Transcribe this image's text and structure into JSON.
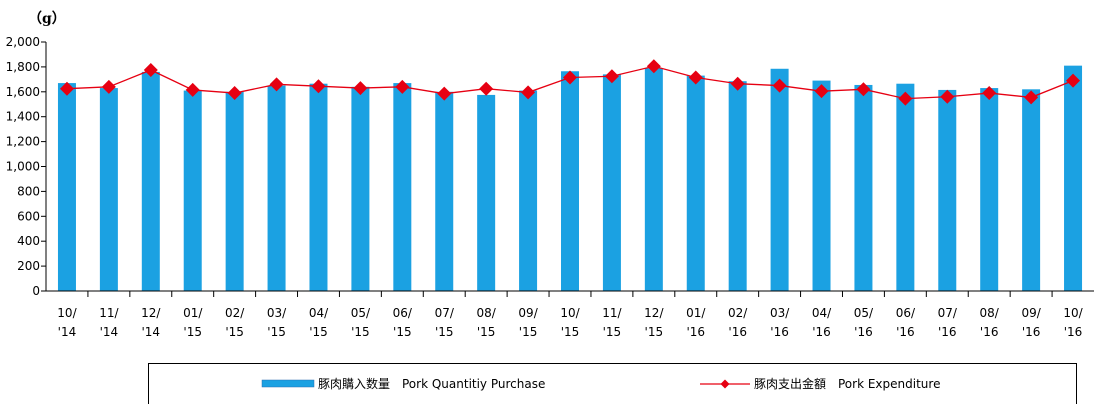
{
  "chart_data": {
    "type": "bar",
    "unit_label": "（g）",
    "y_ticks": [
      "0",
      "200",
      "400",
      "600",
      "800",
      "1,000",
      "1,200",
      "1,400",
      "1,600",
      "1,800",
      "2,000"
    ],
    "ylim": [
      0,
      2000
    ],
    "categories": [
      [
        "10/",
        "'14"
      ],
      [
        "11/",
        "'14"
      ],
      [
        "12/",
        "'14"
      ],
      [
        "01/",
        "'15"
      ],
      [
        "02/",
        "'15"
      ],
      [
        "03/",
        "'15"
      ],
      [
        "04/",
        "'15"
      ],
      [
        "05/",
        "'15"
      ],
      [
        "06/",
        "'15"
      ],
      [
        "07/",
        "'15"
      ],
      [
        "08/",
        "'15"
      ],
      [
        "09/",
        "'15"
      ],
      [
        "10/",
        "'15"
      ],
      [
        "11/",
        "'15"
      ],
      [
        "12/",
        "'15"
      ],
      [
        "01/",
        "'16"
      ],
      [
        "02/",
        "'16"
      ],
      [
        "03/",
        "'16"
      ],
      [
        "04/",
        "'16"
      ],
      [
        "05/",
        "'16"
      ],
      [
        "06/",
        "'16"
      ],
      [
        "07/",
        "'16"
      ],
      [
        "08/",
        "'16"
      ],
      [
        "09/",
        "'16"
      ],
      [
        "10/",
        "'16"
      ]
    ],
    "series": [
      {
        "name": "豚肉購入数量　Pork Quantitiy Purchase",
        "type": "bar",
        "color": "#1BA1E2",
        "values": [
          1670,
          1630,
          1760,
          1610,
          1600,
          1650,
          1665,
          1640,
          1670,
          1600,
          1575,
          1610,
          1765,
          1740,
          1790,
          1730,
          1685,
          1785,
          1690,
          1655,
          1665,
          1615,
          1630,
          1620,
          1810
        ]
      },
      {
        "name": "豚肉支出金額　Pork Expenditure",
        "type": "line",
        "color": "#E60012",
        "values": [
          1625,
          1640,
          1775,
          1615,
          1590,
          1660,
          1645,
          1630,
          1640,
          1585,
          1625,
          1595,
          1715,
          1725,
          1805,
          1715,
          1665,
          1650,
          1605,
          1620,
          1545,
          1560,
          1590,
          1555,
          1690
        ]
      }
    ]
  }
}
